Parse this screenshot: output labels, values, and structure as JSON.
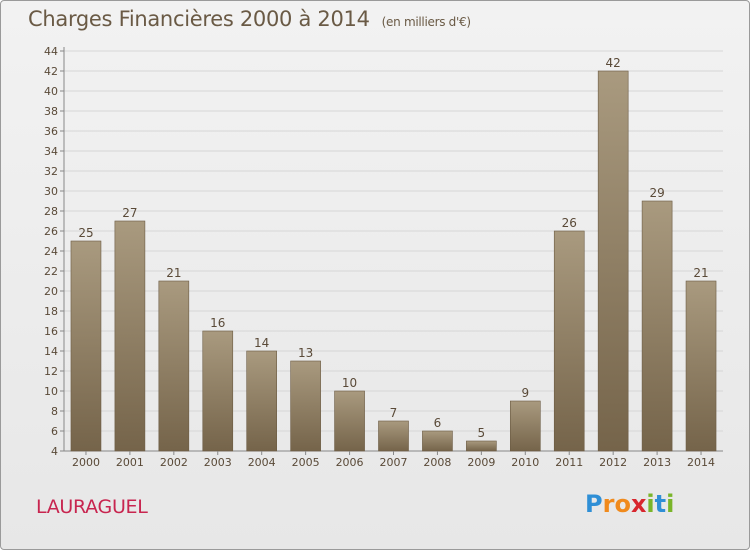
{
  "title": "Charges Financières 2000 à 2014",
  "subtitle": "(en milliers d'€)",
  "commune": "LAURAGUEL",
  "logo": {
    "letters": [
      "P",
      "r",
      "o",
      "x",
      "i",
      "t",
      "i"
    ],
    "colors": [
      "#2f8fd6",
      "#f08a1c",
      "#f08a1c",
      "#d8262e",
      "#7ab52a",
      "#2f8fd6",
      "#7ab52a"
    ]
  },
  "colors": {
    "bar_top": "#a99a7f",
    "bar_bottom": "#75644a",
    "text": "#5a4a38"
  },
  "chart_data": {
    "type": "bar",
    "categories": [
      "2000",
      "2001",
      "2002",
      "2003",
      "2004",
      "2005",
      "2006",
      "2007",
      "2008",
      "2009",
      "2010",
      "2011",
      "2012",
      "2013",
      "2014"
    ],
    "values": [
      25,
      27,
      21,
      16,
      14,
      13,
      10,
      7,
      6,
      5,
      9,
      26,
      42,
      29,
      21
    ],
    "ylim": [
      4,
      44
    ],
    "yticks": [
      4,
      6,
      8,
      10,
      12,
      14,
      16,
      18,
      20,
      22,
      24,
      26,
      28,
      30,
      32,
      34,
      36,
      38,
      40,
      42,
      44
    ],
    "grid": true,
    "data_labels": true
  }
}
